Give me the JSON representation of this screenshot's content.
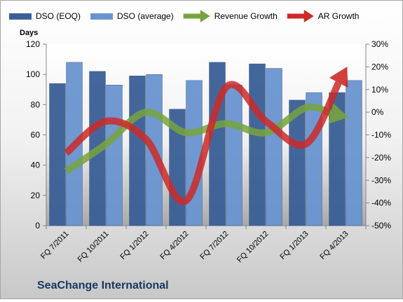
{
  "company": "SeaChange International",
  "chart_data": {
    "type": "bar",
    "categories": [
      "FQ 7/2011",
      "FQ 10/2011",
      "FQ 1/2012",
      "FQ 4/2012",
      "FQ 7/2012",
      "FQ 10/2012",
      "FQ 1/2013",
      "FQ 4/2013"
    ],
    "ylabel": "Days",
    "ylim": [
      0,
      120
    ],
    "y_ticks": [
      "0",
      "20",
      "40",
      "60",
      "80",
      "100",
      "120"
    ],
    "y2lim": [
      -50,
      30
    ],
    "y2_ticks": [
      "-50%",
      "-40%",
      "-30%",
      "-20%",
      "-10%",
      "0%",
      "10%",
      "20%",
      "30%"
    ],
    "grid": false,
    "legend_position": "top",
    "series": [
      {
        "name": "DSO (EOQ)",
        "kind": "bar",
        "axis": "left",
        "color": "#3a5f96",
        "values": [
          94,
          102,
          99,
          77,
          108,
          107,
          83,
          88
        ]
      },
      {
        "name": "DSO (average)",
        "kind": "bar",
        "axis": "left",
        "color": "#6a94d0",
        "values": [
          108,
          93,
          100,
          96,
          93,
          104,
          88,
          96
        ]
      },
      {
        "name": "Revenue Growth",
        "kind": "arrow-line",
        "axis": "right",
        "color": "#77a33e",
        "values": [
          -26,
          -14,
          0,
          -9,
          -5,
          -9,
          2,
          -2
        ]
      },
      {
        "name": "AR Growth",
        "kind": "arrow-line",
        "axis": "right",
        "color": "#cc2a28",
        "values": [
          -18,
          -4,
          -12,
          -39,
          11,
          -4,
          -14,
          19
        ]
      }
    ]
  }
}
